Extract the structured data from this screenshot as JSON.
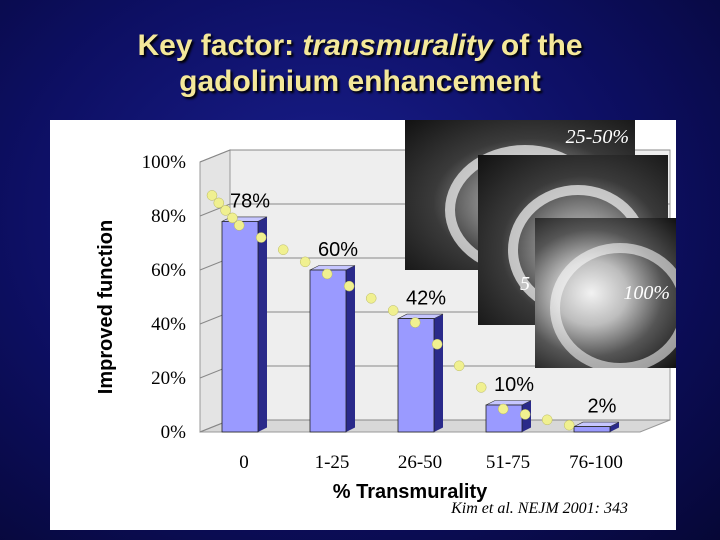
{
  "slide": {
    "title_part1": "Key factor:  ",
    "title_italic": "transmurality",
    "title_part2": " of the",
    "title_line2": "gadolinium enhancement",
    "citation": "Kim et al. NEJM   2001: 343"
  },
  "images": {
    "label_1": "25-50%",
    "label_2": "5",
    "label_3": "100%"
  },
  "colors": {
    "background": "#0d0f63",
    "title": "#f4e89a",
    "bar": "#9a9aff",
    "dot": "#f0f090"
  },
  "chart_data": {
    "type": "bar",
    "categories": [
      "0",
      "1-25",
      "26-50",
      "51-75",
      "76-100"
    ],
    "values": [
      78,
      60,
      42,
      10,
      2
    ],
    "data_labels": [
      "78%",
      "60%",
      "42%",
      "10%",
      "2%"
    ],
    "ytick_labels": [
      "0%",
      "20%",
      "40%",
      "60%",
      "80%",
      "100%"
    ],
    "ylabel": "Improved function",
    "xlabel": "% Transmurality",
    "ylim": [
      0,
      100
    ],
    "grid": true,
    "trend": "dotted line descending across bar tops"
  }
}
